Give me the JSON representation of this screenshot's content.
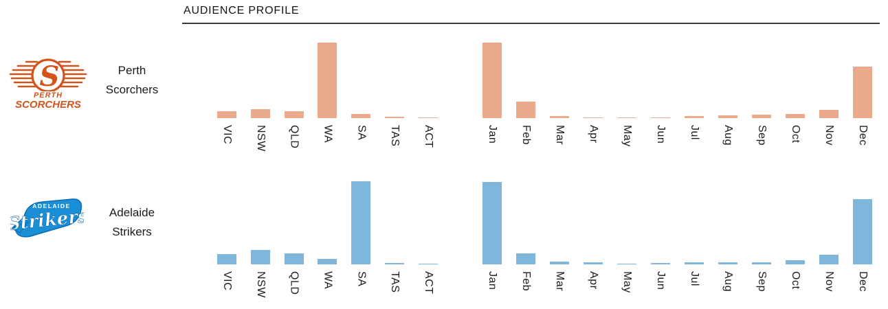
{
  "header": {
    "title": "AUDIENCE PROFILE"
  },
  "colors": {
    "scorchers_bar": "#ebaa8c",
    "strikers_bar": "#7fb6dc",
    "scorchers_logo_orange": "#d4521c",
    "strikers_logo_blue": "#1b8fd6",
    "strikers_logo_outline": "#0d6ab3",
    "title_text": "#141414",
    "label_text": "#1b1b1b",
    "rule": "#3c3c3c"
  },
  "rows": [
    {
      "team": "Perth Scorchers",
      "name_line1": "Perth",
      "name_line2": "Scorchers"
    },
    {
      "team": "Adelaide Strikers",
      "name_line1": "Adelaide",
      "name_line2": "Strikers"
    }
  ],
  "logos": {
    "perth": {
      "initial": "S",
      "line1": "PERTH",
      "line2": "SCORCHERS"
    },
    "adelaide": {
      "top": "ADELAIDE",
      "script": "Strikers"
    }
  },
  "chart_data": [
    {
      "type": "bar",
      "team": "Perth Scorchers",
      "dimension": "state",
      "categories": [
        "VIC",
        "NSW",
        "QLD",
        "WA",
        "SA",
        "TAS",
        "ACT"
      ],
      "values": [
        8,
        10.4,
        8.4,
        88,
        4.8,
        2,
        1
      ],
      "value_unit": "relative audience share (% of plot height; no numeric axis shown)",
      "bar_color": "#ebaa8c",
      "ylim": [
        0,
        100
      ],
      "grid": false,
      "legend": "none",
      "tick_label_rotation": -90
    },
    {
      "type": "bar",
      "team": "Perth Scorchers",
      "dimension": "month",
      "categories": [
        "Jan",
        "Feb",
        "Mar",
        "Apr",
        "May",
        "Jun",
        "Jul",
        "Aug",
        "Sep",
        "Oct",
        "Nov",
        "Dec"
      ],
      "values": [
        88,
        19.2,
        2.4,
        1.2,
        1.2,
        1.2,
        2.4,
        3.2,
        4,
        5.2,
        9.6,
        60
      ],
      "value_unit": "relative audience share (% of plot height; no numeric axis shown)",
      "bar_color": "#ebaa8c",
      "ylim": [
        0,
        100
      ],
      "grid": false,
      "legend": "none",
      "tick_label_rotation": -90
    },
    {
      "type": "bar",
      "team": "Adelaide Strikers",
      "dimension": "state",
      "categories": [
        "VIC",
        "NSW",
        "QLD",
        "WA",
        "SA",
        "TAS",
        "ACT"
      ],
      "values": [
        12.2,
        16.8,
        12.5,
        6.2,
        96.8,
        1.8,
        1
      ],
      "value_unit": "relative audience share (% of plot height; no numeric axis shown)",
      "bar_color": "#7fb6dc",
      "ylim": [
        0,
        100
      ],
      "grid": false,
      "legend": "none",
      "tick_label_rotation": -90
    },
    {
      "type": "bar",
      "team": "Adelaide Strikers",
      "dimension": "month",
      "categories": [
        "Jan",
        "Feb",
        "Mar",
        "Apr",
        "May",
        "Jun",
        "Jul",
        "Aug",
        "Sep",
        "Oct",
        "Nov",
        "Dec"
      ],
      "values": [
        96,
        12.8,
        3.2,
        2.4,
        1.2,
        2,
        2.8,
        2.4,
        2.4,
        4.8,
        11.2,
        76
      ],
      "value_unit": "relative audience share (% of plot height; no numeric axis shown)",
      "bar_color": "#7fb6dc",
      "ylim": [
        0,
        100
      ],
      "grid": false,
      "legend": "none",
      "tick_label_rotation": -90
    }
  ]
}
